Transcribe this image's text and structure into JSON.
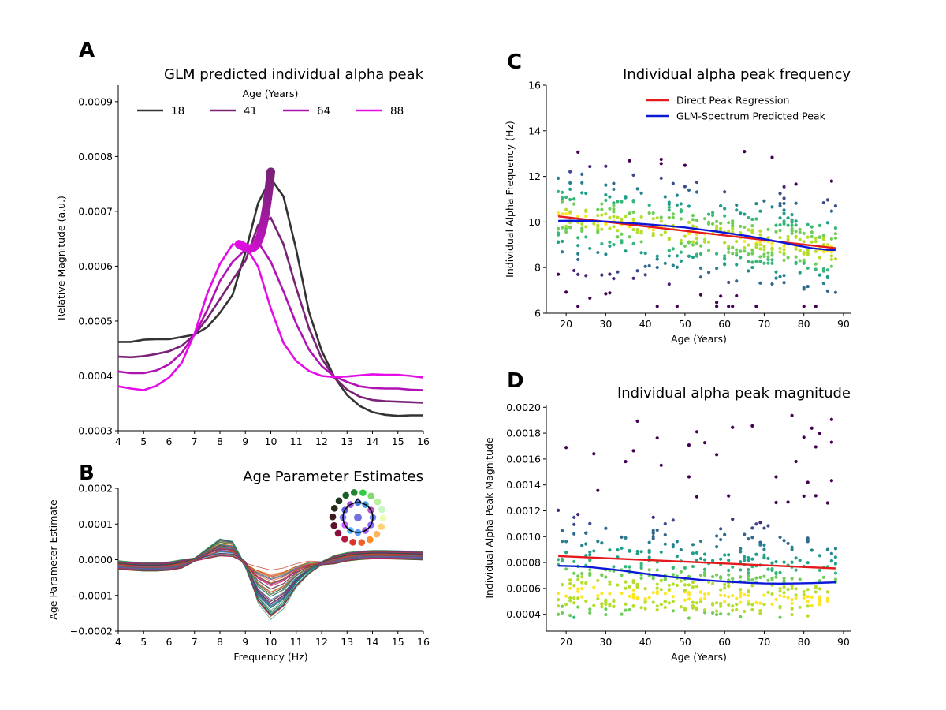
{
  "panels": {
    "A": {
      "label": "A",
      "title": "GLM predicted individual alpha peak"
    },
    "B": {
      "label": "B",
      "title": "Age Parameter Estimates"
    },
    "C": {
      "label": "C",
      "title": "Individual alpha peak frequency"
    },
    "D": {
      "label": "D",
      "title": "Individual alpha peak magnitude"
    }
  },
  "chart_data": [
    {
      "id": "A",
      "type": "line",
      "title": "GLM predicted individual alpha peak",
      "xlabel": "",
      "ylabel": "Relative Magnitude (a.u.)",
      "xlim": [
        4,
        16
      ],
      "ylim": [
        0.0003,
        0.00093
      ],
      "xticks": [
        4,
        5,
        6,
        7,
        8,
        9,
        10,
        11,
        12,
        13,
        14,
        15,
        16
      ],
      "xtick_labels": [
        "4",
        "5",
        "6",
        "7",
        "8",
        "9",
        "10",
        "11",
        "12",
        "13",
        "14",
        "15",
        "16"
      ],
      "yticks": [
        0.0003,
        0.0004,
        0.0005,
        0.0006,
        0.0007,
        0.0008,
        0.0009
      ],
      "ytick_labels": [
        "0.0003",
        "0.0004",
        "0.0005",
        "0.0006",
        "0.0007",
        "0.0008",
        "0.0009"
      ],
      "legend_title": "Age (Years)",
      "legend_position": "top",
      "x": [
        4,
        4.5,
        5,
        5.5,
        6,
        6.5,
        7,
        7.5,
        8,
        8.5,
        9,
        9.5,
        10,
        10.5,
        11,
        11.5,
        12,
        12.5,
        13,
        13.5,
        14,
        14.5,
        15,
        15.5,
        16
      ],
      "series": [
        {
          "name": "18",
          "color": "#333333",
          "values": [
            0.000462,
            0.000462,
            0.000466,
            0.000467,
            0.000467,
            0.000471,
            0.000475,
            0.000489,
            0.000515,
            0.000548,
            0.000625,
            0.000715,
            0.00076,
            0.000727,
            0.00063,
            0.000517,
            0.000446,
            0.000398,
            0.000365,
            0.000345,
            0.000334,
            0.000329,
            0.000327,
            0.000328,
            0.000328
          ]
        },
        {
          "name": "41",
          "color": "#7a2277",
          "values": [
            0.000435,
            0.000434,
            0.000436,
            0.00044,
            0.000445,
            0.000455,
            0.000475,
            0.000505,
            0.00054,
            0.000575,
            0.00061,
            0.000675,
            0.000688,
            0.00064,
            0.00056,
            0.000487,
            0.000432,
            0.000397,
            0.000375,
            0.000362,
            0.000356,
            0.000354,
            0.000353,
            0.000352,
            0.000351
          ]
        },
        {
          "name": "64",
          "color": "#b012b4",
          "values": [
            0.000408,
            0.000405,
            0.000405,
            0.00041,
            0.000421,
            0.000442,
            0.000475,
            0.00052,
            0.000573,
            0.000608,
            0.00063,
            0.000644,
            0.000608,
            0.000554,
            0.000495,
            0.000448,
            0.000418,
            0.000399,
            0.000389,
            0.000381,
            0.000378,
            0.000377,
            0.000377,
            0.000375,
            0.000374
          ]
        },
        {
          "name": "88",
          "color": "#e60ce8",
          "values": [
            0.000381,
            0.000377,
            0.000374,
            0.000382,
            0.000397,
            0.000424,
            0.000477,
            0.00055,
            0.000604,
            0.00064,
            0.000637,
            0.000599,
            0.000523,
            0.00046,
            0.000427,
            0.000409,
            0.0004,
            0.000398,
            0.000399,
            0.000401,
            0.000403,
            0.000402,
            0.000402,
            0.0004,
            0.000397
          ]
        }
      ],
      "peak_trace": {
        "start": [
          8.75,
          0.00064
        ],
        "min": [
          9.1,
          0.000632
        ],
        "end": [
          10.0,
          0.000772
        ],
        "color_start": "#e60ce8",
        "color_end": "#7a2277"
      }
    },
    {
      "id": "B",
      "type": "line",
      "title": "Age Parameter Estimates",
      "xlabel": "Frequency (Hz)",
      "ylabel": "Age Parameter Estimate",
      "xlim": [
        4,
        16
      ],
      "ylim": [
        -0.0002,
        0.0002
      ],
      "xticks": [
        4,
        5,
        6,
        7,
        8,
        9,
        10,
        11,
        12,
        13,
        14,
        15,
        16
      ],
      "xtick_labels": [
        "4",
        "5",
        "6",
        "7",
        "8",
        "9",
        "10",
        "11",
        "12",
        "13",
        "14",
        "15",
        "16"
      ],
      "yticks": [
        -0.0002,
        -0.0001,
        0.0,
        0.0001,
        0.0002
      ],
      "ytick_labels": [
        "−0.0002",
        "−0.0001",
        "0.0000",
        "0.0001",
        "0.0002"
      ],
      "x": [
        4,
        4.5,
        5,
        5.5,
        6,
        6.5,
        7,
        7.5,
        8,
        8.5,
        9,
        9.5,
        10,
        10.5,
        11,
        11.5,
        12,
        12.5,
        13,
        13.5,
        14,
        14.5,
        15,
        15.5,
        16
      ],
      "n_channels": 52,
      "mean_curve": [
        -1.5e-05,
        -1.8e-05,
        -2e-05,
        -2e-05,
        -1.8e-05,
        -1.2e-05,
        0.0,
        2e-05,
        4e-05,
        3.5e-05,
        -1.5e-05,
        -8e-05,
        -0.00011,
        -9e-05,
        -5e-05,
        -2.5e-05,
        -1e-05,
        0.0,
        8e-06,
        1.2e-05,
        1.4e-05,
        1.4e-05,
        1.3e-05,
        1.2e-05,
        1.1e-05
      ],
      "channel_ranges": {
        "at_8hz": [
          1.5e-05,
          8.5e-05
        ],
        "at_10hz": [
          -0.000155,
          -3e-05
        ]
      },
      "sensor_legend": "topographic channel color key",
      "colors": [
        "#2d8f3c",
        "#1f6fb2",
        "#7b2d8e",
        "#c0392b",
        "#e67e22",
        "#16a085",
        "#8e44ad",
        "#d35400",
        "#2c3e50",
        "#27ae60",
        "#c2185b",
        "#5d4037"
      ]
    },
    {
      "id": "C",
      "type": "scatter",
      "title": "Individual alpha peak frequency",
      "xlabel": "Age (Years)",
      "ylabel": "Individual Alpha Frequency (Hz)",
      "xlim": [
        15,
        92
      ],
      "ylim": [
        6,
        16
      ],
      "xticks": [
        20,
        30,
        40,
        50,
        60,
        70,
        80,
        90
      ],
      "xtick_labels": [
        "20",
        "30",
        "40",
        "50",
        "60",
        "70",
        "80",
        "90"
      ],
      "yticks": [
        6,
        8,
        10,
        12,
        14,
        16
      ],
      "ytick_labels": [
        "6",
        "8",
        "10",
        "12",
        "14",
        "16"
      ],
      "legend_position": "top-right",
      "lines": [
        {
          "name": "Direct Peak Regression",
          "color": "#e41a1c",
          "x": [
            18,
            88
          ],
          "y": [
            10.25,
            8.85
          ]
        },
        {
          "name": "GLM-Spectrum Predicted Peak",
          "color": "#0b18d6",
          "x": [
            18,
            22,
            26,
            30,
            34,
            38,
            42,
            46,
            50,
            54,
            58,
            62,
            66,
            70,
            74,
            78,
            82,
            86,
            88
          ],
          "y": [
            10.05,
            10.06,
            10.05,
            10.02,
            9.98,
            9.93,
            9.88,
            9.82,
            9.76,
            9.67,
            9.58,
            9.48,
            9.38,
            9.25,
            9.12,
            8.98,
            8.85,
            8.78,
            8.77
          ]
        }
      ],
      "points_summary": {
        "n": 520,
        "x_range": [
          18,
          88
        ],
        "y_range": [
          6.3,
          13.7
        ],
        "colormap": "viridis (density)"
      }
    },
    {
      "id": "D",
      "type": "scatter",
      "title": "Individual alpha peak magnitude",
      "xlabel": "Age (Years)",
      "ylabel": "Individual Alpha Peak Magnitude",
      "xlim": [
        15,
        92
      ],
      "ylim": [
        0.00027,
        0.00202
      ],
      "xticks": [
        20,
        30,
        40,
        50,
        60,
        70,
        80,
        90
      ],
      "xtick_labels": [
        "20",
        "30",
        "40",
        "50",
        "60",
        "70",
        "80",
        "90"
      ],
      "yticks": [
        0.0004,
        0.0006,
        0.0008,
        0.001,
        0.0012,
        0.0014,
        0.0016,
        0.0018,
        0.002
      ],
      "ytick_labels": [
        "0.0004",
        "0.0006",
        "0.0008",
        "0.0010",
        "0.0012",
        "0.0014",
        "0.0016",
        "0.0018",
        "0.0020"
      ],
      "lines": [
        {
          "name": "Direct Peak Regression",
          "color": "#e41a1c",
          "x": [
            18,
            88
          ],
          "y": [
            0.00085,
            0.000755
          ]
        },
        {
          "name": "GLM-Spectrum Predicted Peak",
          "color": "#0b18d6",
          "x": [
            18,
            22,
            26,
            30,
            34,
            38,
            42,
            46,
            50,
            54,
            58,
            62,
            66,
            70,
            74,
            78,
            82,
            86,
            88
          ],
          "y": [
            0.000775,
            0.000772,
            0.000765,
            0.000752,
            0.000738,
            0.000722,
            0.000705,
            0.00069,
            0.000678,
            0.000666,
            0.000658,
            0.00065,
            0.000643,
            0.000638,
            0.000637,
            0.000638,
            0.000641,
            0.000645,
            0.000647
          ]
        }
      ],
      "points_summary": {
        "n": 520,
        "x_range": [
          18,
          88
        ],
        "y_range": [
          0.00035,
          0.00194
        ],
        "colormap": "viridis (density)"
      }
    }
  ]
}
